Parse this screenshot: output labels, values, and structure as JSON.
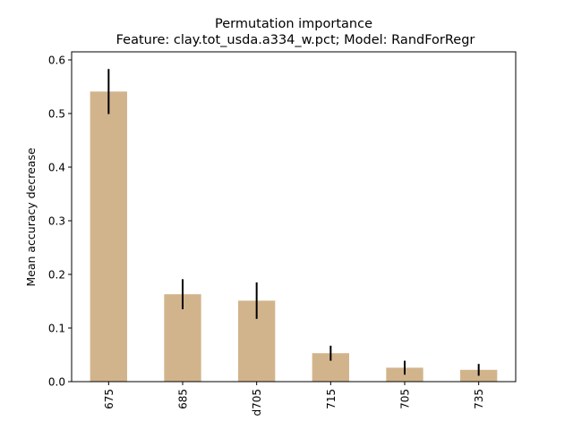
{
  "chart_data": {
    "type": "bar",
    "title": "Permutation importance",
    "subtitle": "Feature: clay.tot_usda.a334_w.pct; Model: RandForRegr",
    "xlabel": "",
    "ylabel": "Mean accuracy decrease",
    "categories": [
      "675",
      "685",
      "d705",
      "715",
      "705",
      "735"
    ],
    "values": [
      0.541,
      0.163,
      0.151,
      0.053,
      0.026,
      0.022
    ],
    "errors": [
      0.042,
      0.028,
      0.034,
      0.014,
      0.013,
      0.011
    ],
    "ylim": [
      0,
      0.615
    ],
    "yticks": [
      0.0,
      0.1,
      0.2,
      0.3,
      0.4,
      0.5,
      0.6
    ],
    "ytick_labels": [
      "0.0",
      "0.1",
      "0.2",
      "0.3",
      "0.4",
      "0.5",
      "0.6"
    ],
    "grid": false,
    "legend": "none",
    "bar_color": "#d2b48c",
    "error_color": "#000000"
  }
}
